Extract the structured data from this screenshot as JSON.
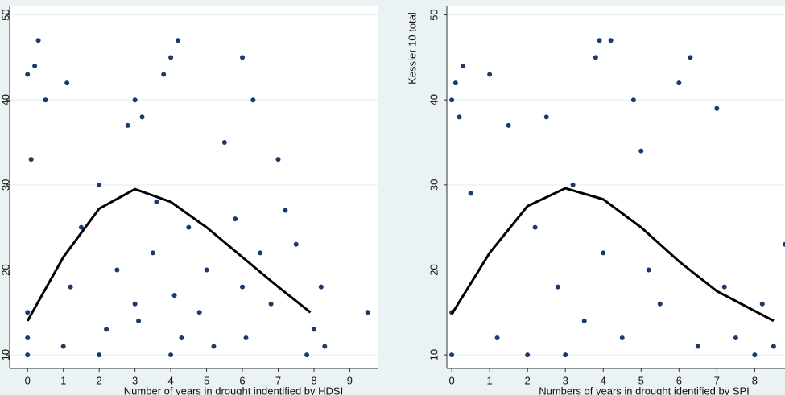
{
  "chart_data": [
    {
      "type": "scatter",
      "x_label": "Number of years in drought indentified by HDSI",
      "xlim": [
        -0.5,
        9.8
      ],
      "ylim": [
        8.4,
        51
      ],
      "xticks": [
        0,
        1,
        2,
        3,
        4,
        5,
        6,
        7,
        8,
        9
      ],
      "yticks": [
        10,
        20,
        30,
        40,
        50
      ],
      "grid": true,
      "series": [
        {
          "type": "scatter",
          "color": "#1b3a6b",
          "x": [
            0,
            0,
            0,
            0,
            0.1,
            0.2,
            0.3,
            0.5,
            1,
            1.1,
            1.2,
            1.5,
            2,
            2,
            2.2,
            2.5,
            2.8,
            3,
            3,
            3.1,
            3.2,
            3.5,
            3.6,
            3.8,
            4,
            4,
            4.1,
            4.2,
            4.3,
            4.5,
            4.8,
            5,
            5.2,
            5.5,
            5.8,
            6,
            6,
            6.1,
            6.3,
            6.5,
            6.8,
            7,
            7.2,
            7.5,
            7.8,
            8,
            8.2,
            8.3,
            9.5
          ],
          "values": [
            10,
            12,
            15,
            43,
            33,
            44,
            47,
            40,
            11,
            42,
            18,
            25,
            10,
            30,
            13,
            20,
            37,
            40,
            16,
            14,
            38,
            22,
            28,
            43,
            10,
            45,
            17,
            47,
            12,
            25,
            15,
            20,
            11,
            35,
            26,
            45,
            18,
            12,
            40,
            22,
            16,
            33,
            27,
            23,
            10,
            13,
            18,
            11,
            15
          ]
        },
        {
          "type": "line",
          "color": "#000000",
          "x": [
            0,
            1,
            2,
            3,
            4,
            5,
            6,
            7,
            7.9
          ],
          "values": [
            14,
            21.5,
            27.2,
            29.5,
            28,
            25,
            21.5,
            18,
            15
          ]
        }
      ]
    },
    {
      "type": "scatter",
      "x_label": "Numbers of years in drought identified by SPI",
      "y_label": "Kessler 10 total",
      "xlim": [
        -0.13,
        8.8
      ],
      "ylim": [
        8.4,
        51
      ],
      "xticks": [
        0,
        1,
        2,
        3,
        4,
        5,
        6,
        7,
        8
      ],
      "yticks": [
        10,
        20,
        30,
        40,
        50
      ],
      "grid": true,
      "series": [
        {
          "type": "scatter",
          "color": "#1b3a6b",
          "x": [
            0,
            0,
            0,
            0.1,
            0.2,
            0.3,
            0.5,
            1,
            1.2,
            1.5,
            2,
            2.2,
            2.5,
            2.8,
            3,
            3.2,
            3.5,
            3.8,
            3.9,
            4,
            4.2,
            4.5,
            4.8,
            5,
            5.2,
            5.5,
            6,
            6.3,
            6.5,
            7,
            7.2,
            7.5,
            8,
            8.2,
            8.5,
            8.8
          ],
          "values": [
            10,
            40,
            15,
            42,
            38,
            44,
            29,
            43,
            12,
            37,
            10,
            25,
            38,
            18,
            10,
            30,
            14,
            45,
            47,
            22,
            47,
            12,
            40,
            34,
            20,
            16,
            42,
            45,
            11,
            39,
            18,
            12,
            10,
            16,
            11,
            23
          ]
        },
        {
          "type": "line",
          "color": "#000000",
          "x": [
            0,
            1,
            2,
            3,
            4,
            5,
            6,
            7,
            8.5
          ],
          "values": [
            14.8,
            22,
            27.5,
            29.6,
            28.3,
            25,
            21,
            17.5,
            14
          ]
        }
      ]
    }
  ]
}
